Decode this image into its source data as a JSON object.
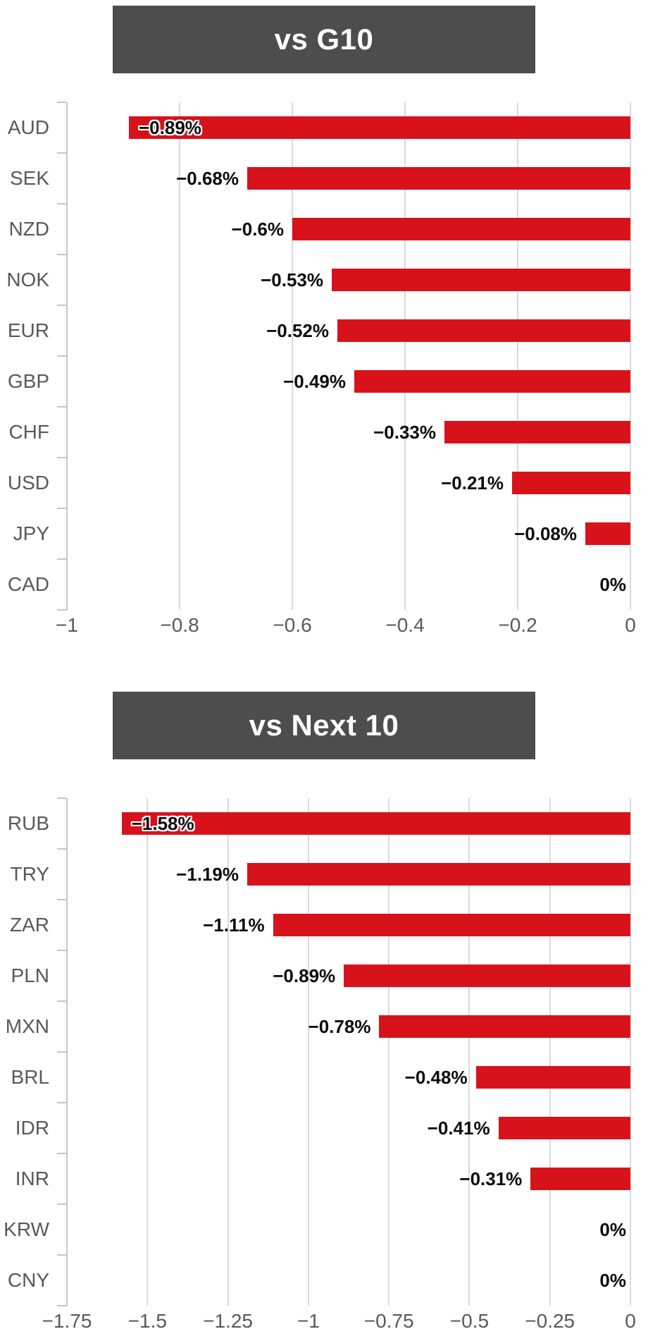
{
  "colors": {
    "bar": "#d8121b",
    "title_bg": "#4d4d4d",
    "title_text": "#ffffff",
    "category_label": "#595959",
    "tick_label": "#595959",
    "value_label": "#0c0c0c",
    "gridline": "#dadada",
    "axis": "#c3c6d1"
  },
  "chart_data": [
    {
      "type": "bar",
      "orientation": "horizontal",
      "title": "vs G10",
      "xlabel": "",
      "ylabel": "",
      "grid": true,
      "legend": false,
      "xlim": [
        -1,
        0
      ],
      "xticks": [
        -1,
        -0.8,
        -0.6,
        -0.4,
        -0.2,
        0
      ],
      "xtick_labels": [
        "−1",
        "−0.8",
        "−0.6",
        "−0.4",
        "−0.2",
        "0"
      ],
      "categories": [
        "AUD",
        "SEK",
        "NZD",
        "NOK",
        "EUR",
        "GBP",
        "CHF",
        "USD",
        "JPY",
        "CAD"
      ],
      "values": [
        -0.89,
        -0.68,
        -0.6,
        -0.53,
        -0.52,
        -0.49,
        -0.33,
        -0.21,
        -0.08,
        0
      ],
      "value_labels": [
        "−0.89%",
        "−0.68%",
        "−0.6%",
        "−0.53%",
        "−0.52%",
        "−0.49%",
        "−0.33%",
        "−0.21%",
        "−0.08%",
        "0%"
      ]
    },
    {
      "type": "bar",
      "orientation": "horizontal",
      "title": "vs Next 10",
      "xlabel": "",
      "ylabel": "",
      "grid": true,
      "legend": false,
      "xlim": [
        -1.75,
        0
      ],
      "xticks": [
        -1.75,
        -1.5,
        -1.25,
        -1,
        -0.75,
        -0.5,
        -0.25,
        0
      ],
      "xtick_labels": [
        "−1.75",
        "−1.5",
        "−1.25",
        "−1",
        "−0.75",
        "−0.5",
        "−0.25",
        "0"
      ],
      "categories": [
        "RUB",
        "TRY",
        "ZAR",
        "PLN",
        "MXN",
        "BRL",
        "IDR",
        "INR",
        "KRW",
        "CNY"
      ],
      "values": [
        -1.58,
        -1.19,
        -1.11,
        -0.89,
        -0.78,
        -0.48,
        -0.41,
        -0.31,
        0,
        0
      ],
      "value_labels": [
        "−1.58%",
        "−1.19%",
        "−1.11%",
        "−0.89%",
        "−0.78%",
        "−0.48%",
        "−0.41%",
        "−0.31%",
        "0%",
        "0%"
      ]
    }
  ]
}
